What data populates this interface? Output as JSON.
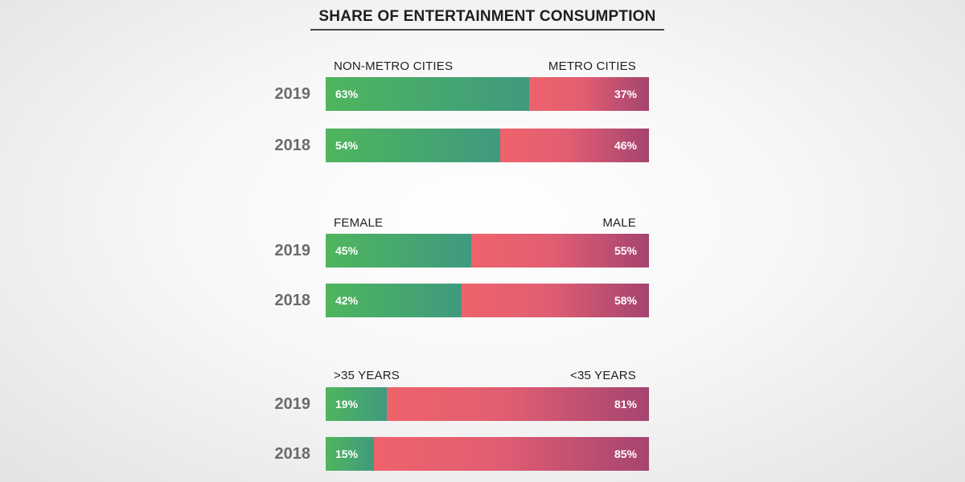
{
  "chart_data": {
    "type": "bar",
    "stacked": true,
    "orientation": "horizontal",
    "title": "SHARE OF ENTERTAINMENT CONSUMPTION",
    "groups": [
      {
        "left_label": "NON-METRO CITIES",
        "right_label": "METRO CITIES",
        "rows": [
          {
            "year": "2019",
            "left": 63,
            "right": 37,
            "left_text": "63%",
            "right_text": "37%"
          },
          {
            "year": "2018",
            "left": 54,
            "right": 46,
            "left_text": "54%",
            "right_text": "46%"
          }
        ]
      },
      {
        "left_label": "FEMALE",
        "right_label": "MALE",
        "rows": [
          {
            "year": "2019",
            "left": 45,
            "right": 55,
            "left_text": "45%",
            "right_text": "55%"
          },
          {
            "year": "2018",
            "left": 42,
            "right": 58,
            "left_text": "42%",
            "right_text": "58%"
          }
        ]
      },
      {
        "left_label": ">35 YEARS",
        "right_label": "<35 YEARS",
        "rows": [
          {
            "year": "2019",
            "left": 19,
            "right": 81,
            "left_text": "19%",
            "right_text": "81%"
          },
          {
            "year": "2018",
            "left": 15,
            "right": 85,
            "left_text": "15%",
            "right_text": "85%"
          }
        ]
      }
    ],
    "colors": {
      "left_start": "#4fb55d",
      "left_end": "#3f9a7f",
      "right_start": "#ee636b",
      "right_end": "#a54470"
    }
  }
}
